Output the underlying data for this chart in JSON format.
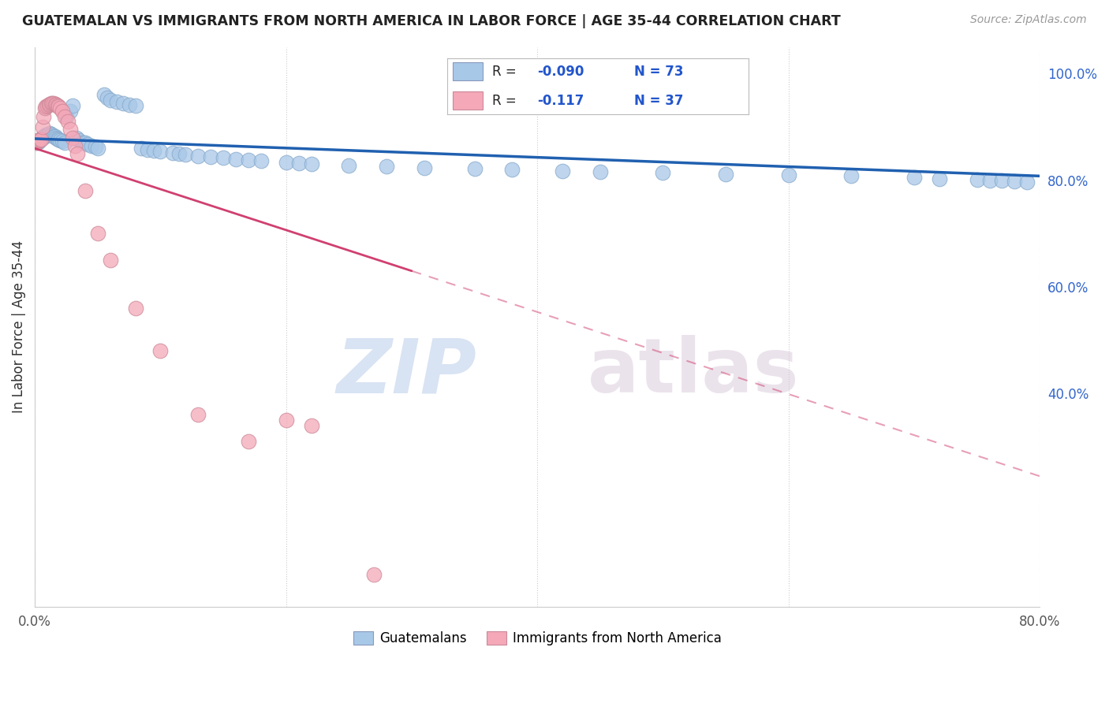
{
  "title": "GUATEMALAN VS IMMIGRANTS FROM NORTH AMERICA IN LABOR FORCE | AGE 35-44 CORRELATION CHART",
  "source": "Source: ZipAtlas.com",
  "ylabel": "In Labor Force | Age 35-44",
  "xlim": [
    0.0,
    0.8
  ],
  "ylim": [
    0.0,
    1.05
  ],
  "xticks": [
    0.0,
    0.2,
    0.4,
    0.6,
    0.8
  ],
  "xtick_labels": [
    "0.0%",
    "",
    "",
    "",
    "80.0%"
  ],
  "ytick_labels_right": [
    "100.0%",
    "80.0%",
    "60.0%",
    "40.0%"
  ],
  "ytick_positions_right": [
    1.0,
    0.8,
    0.6,
    0.4
  ],
  "blue_R": "-0.090",
  "blue_N": "73",
  "pink_R": "-0.117",
  "pink_N": "37",
  "blue_color": "#A8C8E8",
  "pink_color": "#F4A8B8",
  "blue_line_color": "#2060B0",
  "pink_line_color": "#D04070",
  "blue_points_x": [
    0.002,
    0.003,
    0.004,
    0.005,
    0.006,
    0.007,
    0.008,
    0.009,
    0.01,
    0.011,
    0.012,
    0.013,
    0.014,
    0.015,
    0.016,
    0.017,
    0.018,
    0.019,
    0.02,
    0.022,
    0.024,
    0.025,
    0.028,
    0.03,
    0.033,
    0.035,
    0.038,
    0.04,
    0.042,
    0.045,
    0.048,
    0.05,
    0.055,
    0.058,
    0.06,
    0.065,
    0.07,
    0.075,
    0.08,
    0.085,
    0.09,
    0.095,
    0.1,
    0.11,
    0.115,
    0.12,
    0.13,
    0.14,
    0.15,
    0.16,
    0.17,
    0.18,
    0.2,
    0.21,
    0.22,
    0.25,
    0.28,
    0.31,
    0.35,
    0.38,
    0.42,
    0.45,
    0.5,
    0.55,
    0.6,
    0.65,
    0.7,
    0.72,
    0.75,
    0.76,
    0.77,
    0.78,
    0.79
  ],
  "blue_points_y": [
    0.87,
    0.872,
    0.875,
    0.878,
    0.88,
    0.882,
    0.883,
    0.885,
    0.886,
    0.887,
    0.888,
    0.886,
    0.885,
    0.883,
    0.882,
    0.88,
    0.878,
    0.876,
    0.875,
    0.873,
    0.87,
    0.92,
    0.93,
    0.94,
    0.88,
    0.875,
    0.87,
    0.87,
    0.868,
    0.865,
    0.863,
    0.86,
    0.96,
    0.955,
    0.95,
    0.948,
    0.945,
    0.942,
    0.94,
    0.86,
    0.858,
    0.856,
    0.854,
    0.852,
    0.85,
    0.848,
    0.846,
    0.844,
    0.842,
    0.84,
    0.838,
    0.836,
    0.834,
    0.832,
    0.83,
    0.828,
    0.826,
    0.824,
    0.822,
    0.82,
    0.818,
    0.816,
    0.814,
    0.812,
    0.81,
    0.808,
    0.805,
    0.803,
    0.801,
    0.8,
    0.799,
    0.798,
    0.797
  ],
  "pink_points_x": [
    0.001,
    0.002,
    0.003,
    0.004,
    0.005,
    0.006,
    0.007,
    0.008,
    0.009,
    0.01,
    0.011,
    0.012,
    0.013,
    0.014,
    0.015,
    0.016,
    0.017,
    0.018,
    0.019,
    0.02,
    0.022,
    0.024,
    0.026,
    0.028,
    0.03,
    0.032,
    0.034,
    0.04,
    0.05,
    0.06,
    0.08,
    0.1,
    0.13,
    0.17,
    0.2,
    0.22,
    0.27
  ],
  "pink_points_y": [
    0.87,
    0.872,
    0.875,
    0.876,
    0.877,
    0.9,
    0.92,
    0.935,
    0.938,
    0.94,
    0.942,
    0.943,
    0.944,
    0.945,
    0.944,
    0.943,
    0.942,
    0.94,
    0.938,
    0.936,
    0.93,
    0.92,
    0.91,
    0.895,
    0.88,
    0.865,
    0.85,
    0.78,
    0.7,
    0.65,
    0.56,
    0.48,
    0.36,
    0.31,
    0.35,
    0.34,
    0.06
  ],
  "blue_trend_x0": 0.0,
  "blue_trend_y0": 0.878,
  "blue_trend_x1": 0.8,
  "blue_trend_y1": 0.808,
  "pink_trend_solid_x0": 0.0,
  "pink_trend_solid_y0": 0.86,
  "pink_trend_solid_x1": 0.3,
  "pink_trend_solid_y1": 0.63,
  "pink_trend_dash_x0": 0.3,
  "pink_trend_dash_y0": 0.63,
  "pink_trend_dash_x1": 0.8,
  "pink_trend_dash_y1": 0.245,
  "legend_label_blue": "Guatemalans",
  "legend_label_pink": "Immigrants from North America"
}
